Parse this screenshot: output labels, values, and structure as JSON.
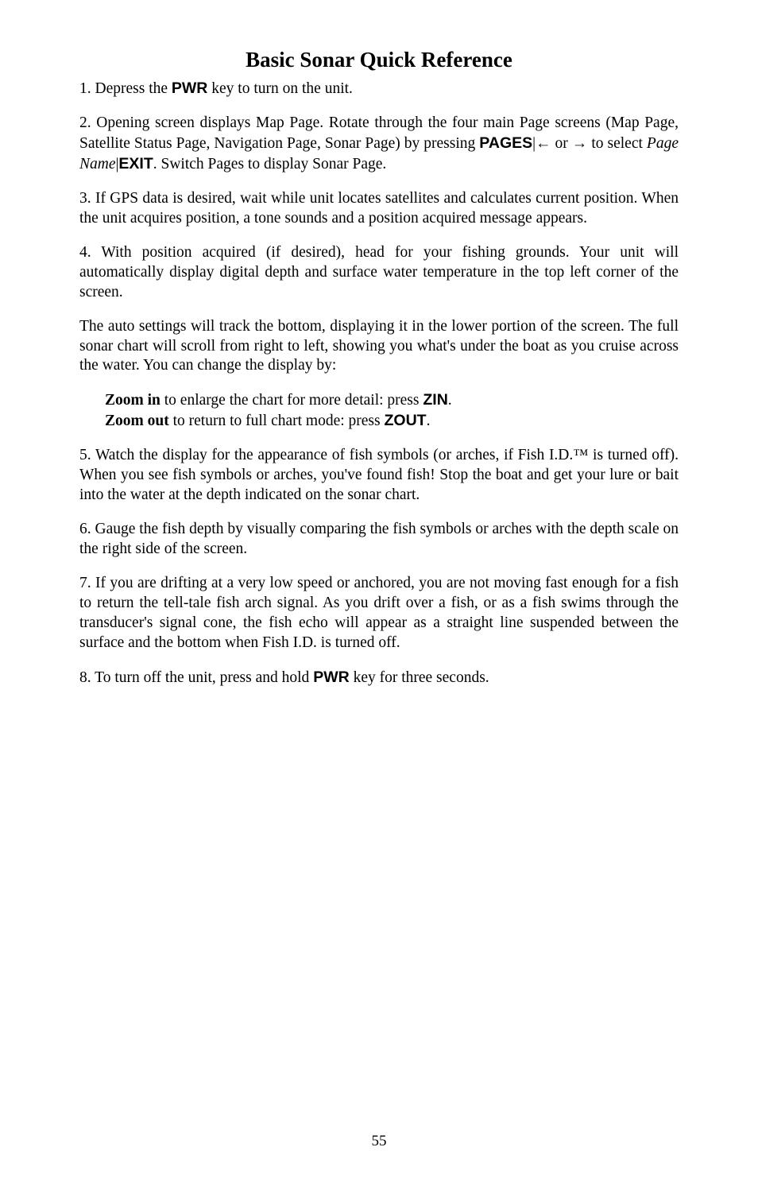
{
  "title": "Basic Sonar Quick Reference",
  "p1_a": "1. Depress the ",
  "p1_key": "PWR",
  "p1_b": " key to turn on the unit.",
  "p2_a": "2. Opening screen displays Map Page. Rotate through the four main Page screens (Map Page, Satellite Status Page, Navigation Page, Sonar Page) by pressing ",
  "p2_key1": "PAGES",
  "p2_b": "|← or → to select ",
  "p2_it": "Page Name",
  "p2_c": "|",
  "p2_key2": "EXIT",
  "p2_d": ". Switch Pages to display Sonar Page.",
  "p3": "3. If GPS data is desired, wait while unit locates satellites and calculates current position. When the unit acquires position, a tone sounds and a position acquired message appears.",
  "p4": "4. With position acquired (if desired), head for your fishing grounds. Your unit will automatically display digital depth and surface water temperature in the top left corner of the screen.",
  "p5": "The auto settings will track the bottom, displaying it in the lower portion of the screen. The full sonar chart will scroll from right to left, showing you what's under the boat as you cruise across the water. You can change the display by:",
  "zin_bold": "Zoom in",
  "zin_txt": " to enlarge the chart for more detail: press ",
  "zin_key": "ZIN",
  "zin_end": ".",
  "zout_bold": "Zoom out",
  "zout_txt": " to return to full chart mode: press ",
  "zout_key": "ZOUT",
  "zout_end": ".",
  "p6": "5. Watch the display for the appearance of fish symbols (or arches, if Fish I.D.™ is turned off). When you see fish symbols or arches, you've found fish! Stop the boat and get your lure or bait into the water at the depth indicated on the sonar chart.",
  "p7": "6. Gauge the fish depth by visually comparing the fish symbols or arches with the depth scale on the right side of the screen.",
  "p8": "7. If you are drifting at a very low speed or anchored, you are not moving fast enough for a fish to return the tell-tale fish arch signal. As you drift over a fish, or as a fish swims through the transducer's signal cone, the fish echo will appear as a straight line suspended between the surface and the bottom when Fish I.D. is turned off.",
  "p9_a": "8. To turn off the unit, press and hold ",
  "p9_key": "PWR",
  "p9_b": " key for three seconds.",
  "page_number": "55"
}
